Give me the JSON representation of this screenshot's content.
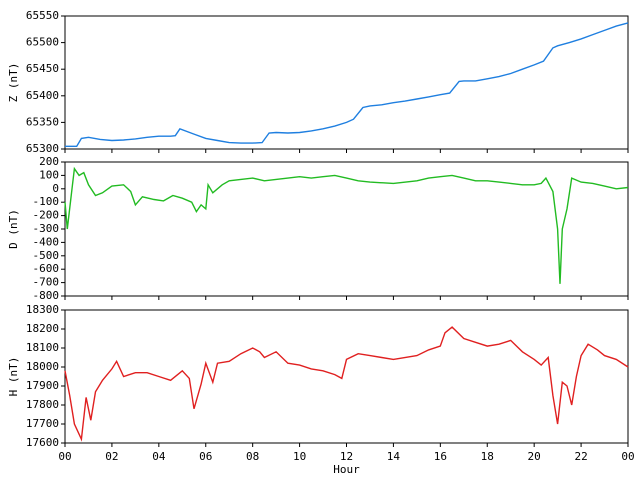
{
  "chart_data": [
    {
      "type": "line",
      "ylabel": "Z (nT)",
      "xlim": [
        0,
        24
      ],
      "ylim": [
        65300,
        65550
      ],
      "yticks": [
        65300,
        65350,
        65400,
        65450,
        65500,
        65550
      ],
      "series": [
        {
          "color": "#1f7fe0",
          "x": [
            0,
            0.5,
            0.7,
            1,
            1.5,
            2,
            2.5,
            3,
            3.5,
            4,
            4.5,
            4.7,
            4.9,
            5.5,
            6,
            6.5,
            7,
            7.5,
            8,
            8.4,
            8.7,
            9,
            9.5,
            10,
            10.5,
            11,
            11.5,
            12,
            12.3,
            12.7,
            13,
            13.5,
            14,
            14.5,
            15,
            15.5,
            16,
            16.4,
            16.8,
            17,
            17.5,
            18,
            18.5,
            19,
            19.5,
            20,
            20.4,
            20.8,
            21,
            21.5,
            22,
            22.5,
            23,
            23.5,
            24
          ],
          "values": [
            65305,
            65305,
            65320,
            65322,
            65318,
            65316,
            65317,
            65319,
            65322,
            65324,
            65324,
            65325,
            65338,
            65328,
            65320,
            65316,
            65312,
            65311,
            65311,
            65312,
            65330,
            65331,
            65330,
            65331,
            65334,
            65338,
            65343,
            65350,
            65356,
            65378,
            65381,
            65383,
            65387,
            65390,
            65394,
            65398,
            65402,
            65405,
            65427,
            65428,
            65428,
            65432,
            65436,
            65442,
            65450,
            65458,
            65465,
            65490,
            65494,
            65500,
            65507,
            65515,
            65523,
            65531,
            65537
          ]
        }
      ]
    },
    {
      "type": "line",
      "ylabel": "D (nT)",
      "xlim": [
        0,
        24
      ],
      "ylim": [
        -800,
        200
      ],
      "yticks": [
        -800,
        -700,
        -600,
        -500,
        -400,
        -300,
        -200,
        -100,
        0,
        100,
        200
      ],
      "series": [
        {
          "color": "#22bb22",
          "x": [
            0,
            0.1,
            0.3,
            0.4,
            0.6,
            0.8,
            1,
            1.3,
            1.6,
            2,
            2.5,
            2.8,
            3,
            3.3,
            3.8,
            4.2,
            4.6,
            5,
            5.4,
            5.6,
            5.8,
            6,
            6.1,
            6.3,
            6.7,
            7,
            7.5,
            8,
            8.5,
            9,
            9.5,
            10,
            10.5,
            11,
            11.5,
            12,
            12.5,
            13,
            14,
            15,
            15.5,
            16,
            16.5,
            17,
            17.5,
            18,
            18.5,
            19,
            19.5,
            20,
            20.3,
            20.5,
            20.8,
            21,
            21.1,
            21.2,
            21.4,
            21.6,
            22,
            22.5,
            23,
            23.5,
            24
          ],
          "values": [
            -100,
            -300,
            0,
            150,
            100,
            120,
            30,
            -50,
            -30,
            20,
            30,
            -20,
            -120,
            -60,
            -80,
            -90,
            -50,
            -70,
            -100,
            -170,
            -120,
            -150,
            30,
            -30,
            30,
            60,
            70,
            80,
            60,
            70,
            80,
            90,
            80,
            90,
            100,
            80,
            60,
            50,
            40,
            60,
            80,
            90,
            100,
            80,
            60,
            60,
            50,
            40,
            30,
            30,
            40,
            80,
            -20,
            -300,
            -710,
            -300,
            -150,
            80,
            50,
            40,
            20,
            0,
            10
          ]
        }
      ]
    },
    {
      "type": "line",
      "ylabel": "H (nT)",
      "xlabel": "Hour",
      "xlim": [
        0,
        24
      ],
      "ylim": [
        17600,
        18300
      ],
      "yticks": [
        17600,
        17700,
        17800,
        17900,
        18000,
        18100,
        18200,
        18300
      ],
      "xticks": [
        {
          "value": 0,
          "label": "00"
        },
        {
          "value": 2,
          "label": "02"
        },
        {
          "value": 4,
          "label": "04"
        },
        {
          "value": 6,
          "label": "06"
        },
        {
          "value": 8,
          "label": "08"
        },
        10,
        12,
        14,
        16,
        18,
        20,
        22,
        {
          "value": 24,
          "label": "00"
        }
      ],
      "series": [
        {
          "color": "#e02020",
          "x": [
            0,
            0.2,
            0.4,
            0.7,
            0.9,
            1.1,
            1.3,
            1.6,
            2,
            2.2,
            2.5,
            3,
            3.5,
            4,
            4.5,
            5,
            5.3,
            5.5,
            5.8,
            6,
            6.3,
            6.5,
            7,
            7.5,
            8,
            8.3,
            8.5,
            9,
            9.5,
            10,
            10.5,
            11,
            11.5,
            11.8,
            12,
            12.5,
            13,
            13.5,
            14,
            15,
            15.5,
            16,
            16.2,
            16.5,
            17,
            17.5,
            18,
            18.5,
            19,
            19.5,
            20,
            20.3,
            20.6,
            20.8,
            21,
            21.2,
            21.4,
            21.6,
            21.8,
            22,
            22.3,
            22.7,
            23,
            23.5,
            24
          ],
          "values": [
            17980,
            17850,
            17700,
            17620,
            17840,
            17720,
            17870,
            17930,
            17990,
            18030,
            17950,
            17970,
            17970,
            17950,
            17930,
            17980,
            17940,
            17780,
            17910,
            18020,
            17920,
            18020,
            18030,
            18070,
            18100,
            18080,
            18050,
            18080,
            18020,
            18010,
            17990,
            17980,
            17960,
            17940,
            18040,
            18070,
            18060,
            18050,
            18040,
            18060,
            18090,
            18110,
            18180,
            18210,
            18150,
            18130,
            18110,
            18120,
            18140,
            18080,
            18040,
            18010,
            18050,
            17850,
            17700,
            17920,
            17900,
            17800,
            17950,
            18060,
            18120,
            18090,
            18060,
            18040,
            18000
          ]
        }
      ]
    }
  ]
}
